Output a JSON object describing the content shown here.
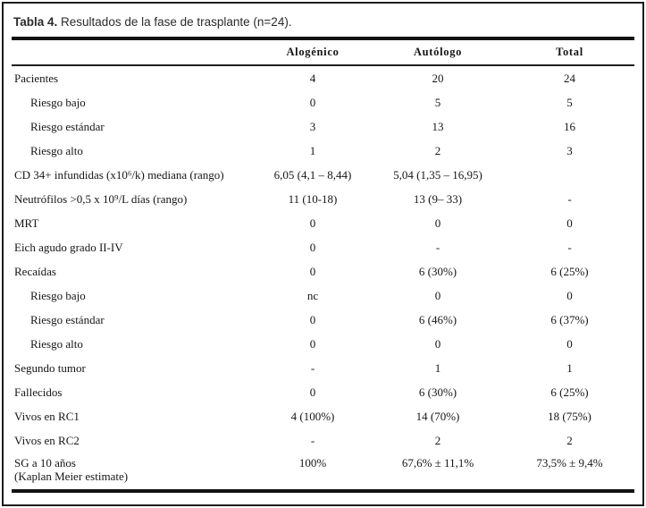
{
  "table": {
    "title_bold": "Tabla 4.",
    "title_rest": " Resultados de la fase de trasplante (n=24).",
    "columns": [
      "",
      "Alogénico",
      "Autólogo",
      "Total"
    ],
    "rows": [
      {
        "label": "Pacientes",
        "indent": false,
        "values": [
          "4",
          "20",
          "24"
        ]
      },
      {
        "label": "Riesgo bajo",
        "indent": true,
        "values": [
          "0",
          "5",
          "5"
        ]
      },
      {
        "label": "Riesgo estándar",
        "indent": true,
        "values": [
          "3",
          "13",
          "16"
        ]
      },
      {
        "label": "Riesgo alto",
        "indent": true,
        "values": [
          "1",
          "2",
          "3"
        ]
      },
      {
        "label": "CD 34+ infundidas (x10⁶/k) mediana (rango)",
        "indent": false,
        "values": [
          "6,05 (4,1 – 8,44)",
          "5,04 (1,35 – 16,95)",
          ""
        ]
      },
      {
        "label": "Neutrófilos >0,5 x 10⁹/L días (rango)",
        "indent": false,
        "values": [
          "11 (10-18)",
          "13 (9– 33)",
          "-"
        ]
      },
      {
        "label": "MRT",
        "indent": false,
        "values": [
          "0",
          "0",
          "0"
        ]
      },
      {
        "label": "Eich agudo grado II-IV",
        "indent": false,
        "values": [
          "0",
          "-",
          "-"
        ]
      },
      {
        "label": "Recaídas",
        "indent": false,
        "values": [
          "0",
          "6 (30%)",
          "6 (25%)"
        ]
      },
      {
        "label": "Riesgo bajo",
        "indent": true,
        "values": [
          "nc",
          "0",
          "0"
        ]
      },
      {
        "label": "Riesgo estándar",
        "indent": true,
        "values": [
          "0",
          "6 (46%)",
          "6 (37%)"
        ]
      },
      {
        "label": "Riesgo alto",
        "indent": true,
        "values": [
          "0",
          "0",
          "0"
        ]
      },
      {
        "label": "Segundo tumor",
        "indent": false,
        "values": [
          "-",
          "1",
          "1"
        ]
      },
      {
        "label": "Fallecidos",
        "indent": false,
        "values": [
          "0",
          "6 (30%)",
          "6 (25%)"
        ]
      },
      {
        "label": "Vivos en RC1",
        "indent": false,
        "values": [
          "4 (100%)",
          "14 (70%)",
          "18 (75%)"
        ]
      },
      {
        "label": "Vivos en RC2",
        "indent": false,
        "values": [
          "-",
          "2",
          "2"
        ]
      },
      {
        "label": "SG a 10 años",
        "label_line2": "(Kaplan Meier estimate)",
        "indent": false,
        "values": [
          "100%",
          "67,6% ± 11,1%",
          "73,5% ± 9,4%"
        ]
      }
    ]
  }
}
